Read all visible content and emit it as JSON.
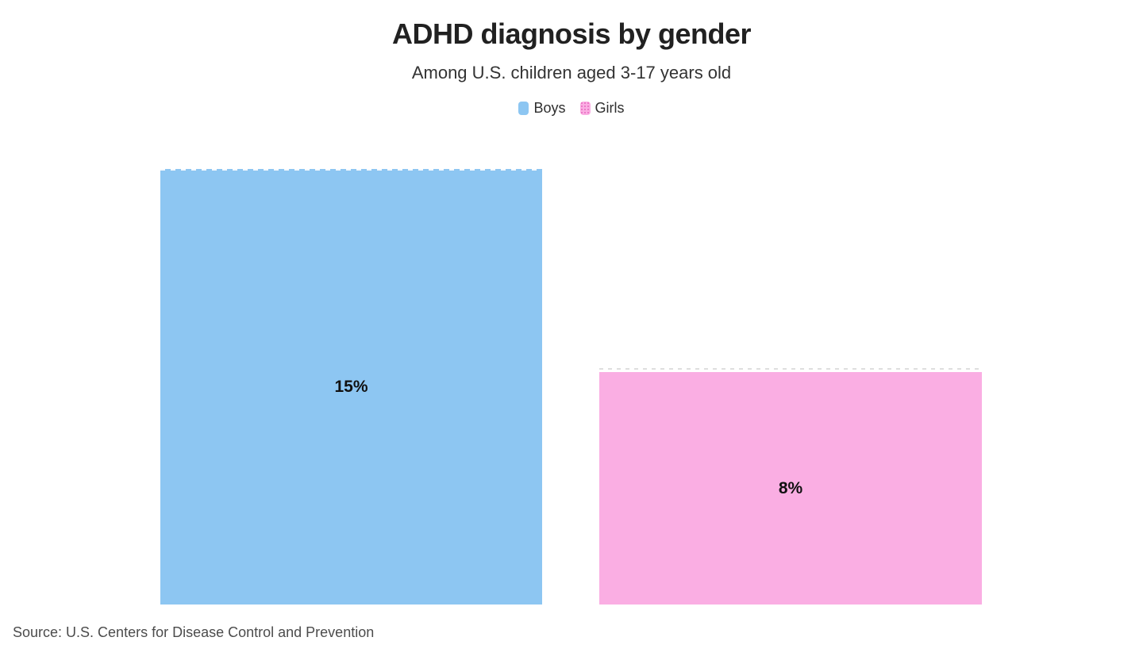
{
  "header": {
    "title": "ADHD diagnosis by gender",
    "subtitle": "Among U.S. children aged 3-17 years old"
  },
  "legend": {
    "items": [
      {
        "label": "Boys",
        "color": "#8DC6F2",
        "pattern": "solid"
      },
      {
        "label": "Girls",
        "color": "#FAAEE3",
        "pattern": "dots"
      }
    ]
  },
  "footer": {
    "source": "Source: U.S. Centers for Disease Control and Prevention"
  },
  "chart_data": {
    "type": "bar",
    "title": "ADHD diagnosis by gender",
    "subtitle": "Among U.S. children aged 3-17 years old",
    "source": "Source: U.S. Centers for Disease Control and Prevention",
    "categories": [
      "Boys",
      "Girls"
    ],
    "values": [
      15,
      8
    ],
    "labels": [
      "15%",
      "8%"
    ],
    "colors": [
      "#8DC6F2",
      "#FAAEE3"
    ],
    "value_suffix": "%",
    "xlabel": "",
    "ylabel": "",
    "ylim": [
      0,
      15
    ],
    "grid": "off (dashed marker at bar tops only)",
    "axis_labels_visible": false,
    "legend_position": "top-center",
    "value_labels_position": "center-of-bar"
  }
}
